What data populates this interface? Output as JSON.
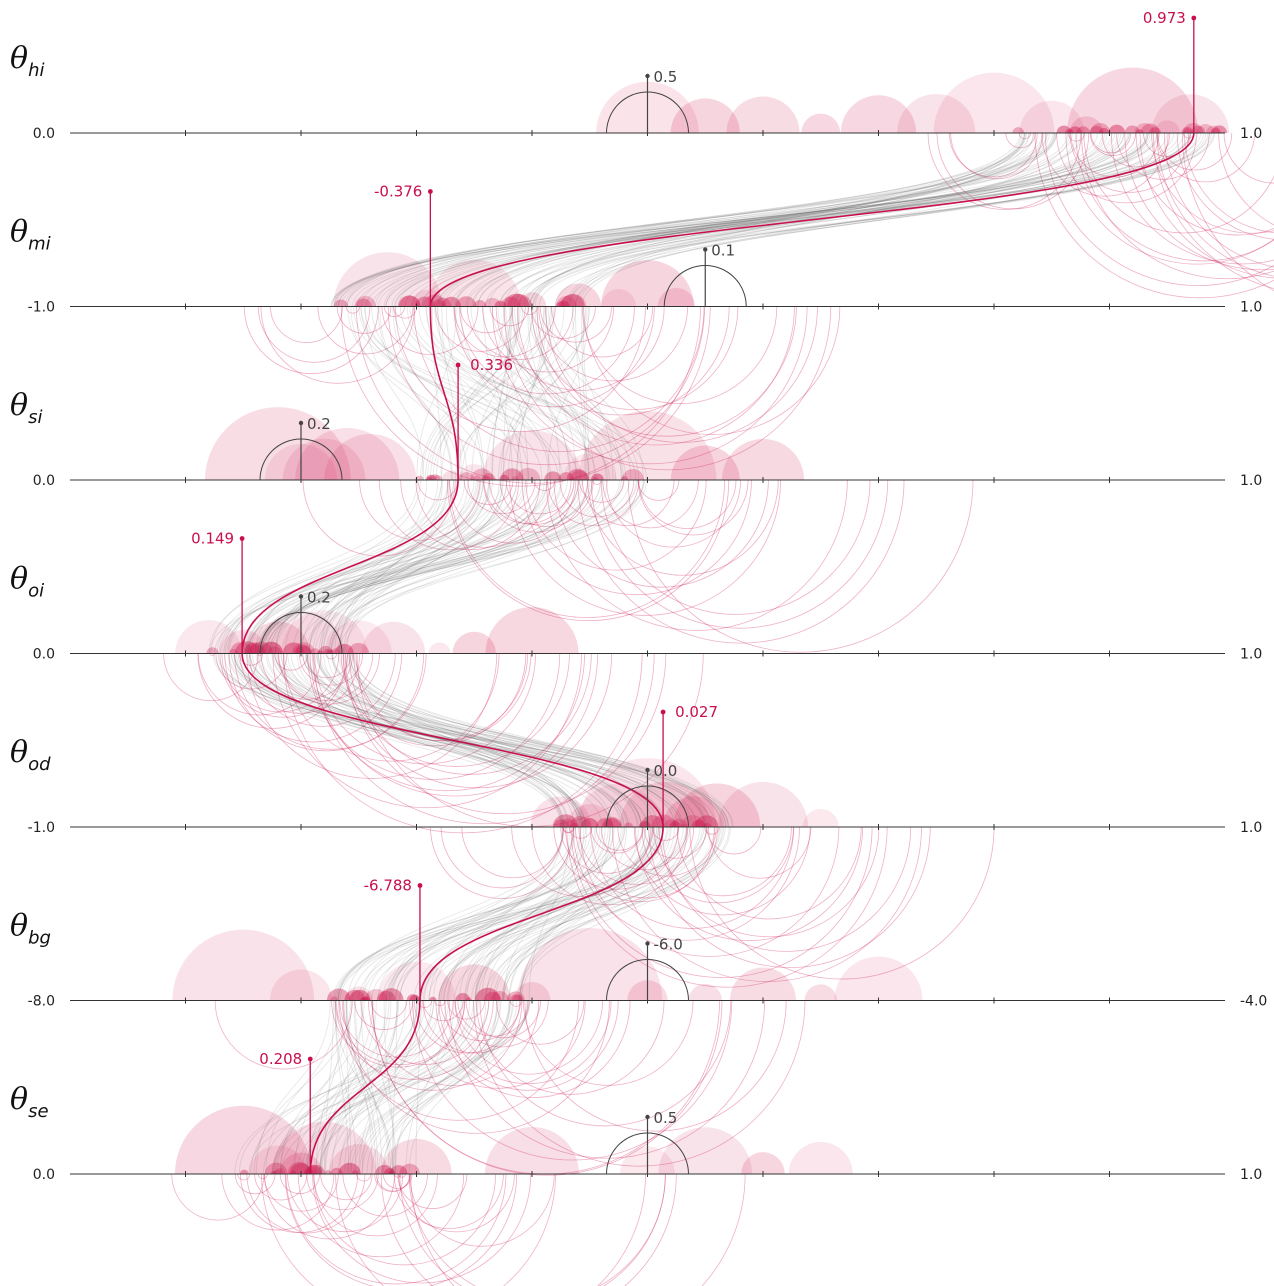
{
  "colors": {
    "accent": "#c8104e",
    "accent_fill": "#d21f55",
    "prior": "#444444",
    "lines": "#555555",
    "axis": "#333333"
  },
  "chart_data": {
    "type": "scatter",
    "title": "",
    "axis_ticks_per_row": 10,
    "rows": [
      {
        "name": "hi",
        "label": "θ",
        "sub": "hi",
        "min_label": "0.0",
        "max_label": "1.0",
        "range": [
          0.0,
          1.0
        ],
        "prior": 0.5,
        "prior_label": "0.5",
        "posterior": 0.973,
        "posterior_label": "0.973",
        "cluster": [
          0.82,
          1.0
        ],
        "bubbles": [
          0.5,
          0.55,
          0.6,
          0.65,
          0.7,
          0.75,
          0.8,
          0.85,
          0.88,
          0.92,
          0.95,
          0.97
        ]
      },
      {
        "name": "mi",
        "label": "θ",
        "sub": "mi",
        "min_label": "-1.0",
        "max_label": "1.0",
        "range": [
          -1.0,
          1.0
        ],
        "prior": 0.1,
        "prior_label": "0.1",
        "posterior": -0.376,
        "posterior_label": "-0.376",
        "cluster": [
          -0.55,
          -0.1
        ],
        "bubbles": [
          -0.45,
          -0.38,
          -0.3,
          -0.2,
          -0.12,
          -0.05,
          0.0,
          0.05
        ]
      },
      {
        "name": "si",
        "label": "θ",
        "sub": "si",
        "min_label": "0.0",
        "max_label": "1.0",
        "range": [
          0.0,
          1.0
        ],
        "prior": 0.2,
        "prior_label": "0.2",
        "posterior": 0.336,
        "posterior_label": "0.336",
        "cluster": [
          0.3,
          0.5
        ],
        "bubbles": [
          0.18,
          0.2,
          0.22,
          0.24,
          0.26,
          0.33,
          0.35,
          0.4,
          0.45,
          0.5,
          0.55,
          0.6
        ]
      },
      {
        "name": "oi",
        "label": "θ",
        "sub": "oi",
        "min_label": "0.0",
        "max_label": "1.0",
        "range": [
          0.0,
          1.0
        ],
        "prior": 0.2,
        "prior_label": "0.2",
        "posterior": 0.149,
        "posterior_label": "0.149",
        "cluster": [
          0.12,
          0.25
        ],
        "bubbles": [
          0.12,
          0.15,
          0.18,
          0.2,
          0.22,
          0.25,
          0.28,
          0.32,
          0.35,
          0.4
        ]
      },
      {
        "name": "od",
        "label": "θ",
        "sub": "od",
        "min_label": "-1.0",
        "max_label": "1.0",
        "range": [
          -1.0,
          1.0
        ],
        "prior": 0.0,
        "prior_label": "0.0",
        "posterior": 0.027,
        "posterior_label": "0.027",
        "cluster": [
          -0.15,
          0.15
        ],
        "bubbles": [
          -0.15,
          -0.1,
          -0.05,
          0.0,
          0.03,
          0.08,
          0.12,
          0.2,
          0.3
        ]
      },
      {
        "name": "bg",
        "label": "θ",
        "sub": "bg",
        "min_label": "-8.0",
        "max_label": "-4.0",
        "range": [
          -8.0,
          -4.0
        ],
        "prior": -6.0,
        "prior_label": "-6.0",
        "posterior": -6.788,
        "posterior_label": "-6.788",
        "cluster": [
          -7.1,
          -6.4
        ],
        "bubbles": [
          -7.4,
          -7.2,
          -7.0,
          -6.8,
          -6.6,
          -6.4,
          -6.2,
          -6.0,
          -5.8,
          -5.6,
          -5.4,
          -5.2
        ]
      },
      {
        "name": "se",
        "label": "θ",
        "sub": "se",
        "min_label": "0.0",
        "max_label": "1.0",
        "range": [
          0.0,
          1.0
        ],
        "prior": 0.5,
        "prior_label": "0.5",
        "posterior": 0.208,
        "posterior_label": "0.208",
        "cluster": [
          0.14,
          0.3
        ],
        "bubbles": [
          0.15,
          0.18,
          0.2,
          0.22,
          0.25,
          0.3,
          0.4,
          0.5,
          0.55,
          0.6,
          0.65
        ]
      }
    ]
  }
}
